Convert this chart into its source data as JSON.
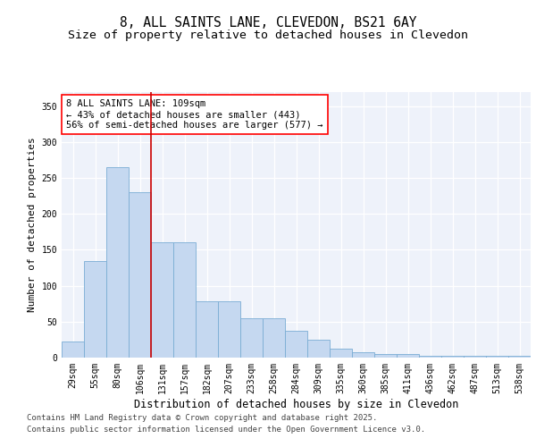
{
  "title1": "8, ALL SAINTS LANE, CLEVEDON, BS21 6AY",
  "title2": "Size of property relative to detached houses in Clevedon",
  "xlabel": "Distribution of detached houses by size in Clevedon",
  "ylabel": "Number of detached properties",
  "categories": [
    "29sqm",
    "55sqm",
    "80sqm",
    "106sqm",
    "131sqm",
    "157sqm",
    "182sqm",
    "207sqm",
    "233sqm",
    "258sqm",
    "284sqm",
    "309sqm",
    "335sqm",
    "360sqm",
    "385sqm",
    "411sqm",
    "436sqm",
    "462sqm",
    "487sqm",
    "513sqm",
    "538sqm"
  ],
  "bar_heights": [
    22,
    134,
    265,
    230,
    160,
    160,
    78,
    78,
    55,
    55,
    37,
    25,
    13,
    8,
    5,
    5,
    2,
    2,
    2,
    2,
    2
  ],
  "bar_color": "#c5d8f0",
  "bar_edge_color": "#7aadd4",
  "vline_x": 3.5,
  "vline_color": "#cc0000",
  "annotation_box_text": "8 ALL SAINTS LANE: 109sqm\n← 43% of detached houses are smaller (443)\n56% of semi-detached houses are larger (577) →",
  "ylim": [
    0,
    370
  ],
  "yticks": [
    0,
    50,
    100,
    150,
    200,
    250,
    300,
    350
  ],
  "background_color": "#eef2fa",
  "grid_color": "#ffffff",
  "footer1": "Contains HM Land Registry data © Crown copyright and database right 2025.",
  "footer2": "Contains public sector information licensed under the Open Government Licence v3.0.",
  "title1_fontsize": 10.5,
  "title2_fontsize": 9.5,
  "xlabel_fontsize": 8.5,
  "ylabel_fontsize": 8,
  "tick_fontsize": 7,
  "annotation_fontsize": 7.5,
  "footer_fontsize": 6.5
}
